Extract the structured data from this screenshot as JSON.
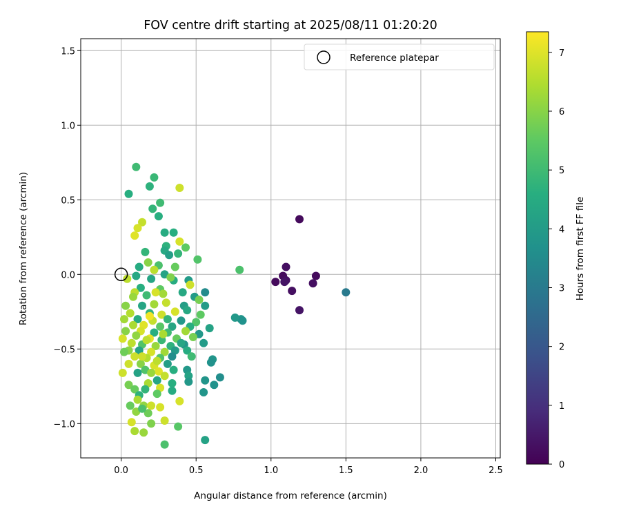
{
  "chart_data": {
    "type": "scatter",
    "title": "FOV centre drift starting at 2025/08/11 01:20:20",
    "xlabel": "Angular distance from reference (arcmin)",
    "ylabel": "Rotation from reference (arcmin)",
    "xlim": [
      -0.27,
      2.53
    ],
    "ylim": [
      -1.23,
      1.58
    ],
    "xticks": [
      0.0,
      0.5,
      1.0,
      1.5,
      2.0,
      2.5
    ],
    "xtick_labels": [
      "0.0",
      "0.5",
      "1.0",
      "1.5",
      "2.0",
      "2.5"
    ],
    "yticks": [
      -1.0,
      -0.5,
      0.0,
      0.5,
      1.0,
      1.5
    ],
    "ytick_labels": [
      "−1.0",
      "−0.5",
      "0.0",
      "0.5",
      "1.0",
      "1.5"
    ],
    "grid": true,
    "legend": {
      "placement": "upper right",
      "entries": [
        "Reference platepar"
      ]
    },
    "reference_point": {
      "x": 0.0,
      "y": 0.0,
      "marker": "open circle"
    },
    "colorbar": {
      "label": "Hours from first FF file",
      "range": [
        0,
        7.35
      ],
      "ticks": [
        0,
        1,
        2,
        3,
        4,
        5,
        6,
        7
      ],
      "tick_labels": [
        "0",
        "1",
        "2",
        "3",
        "4",
        "5",
        "6",
        "7"
      ],
      "colormap": "viridis"
    },
    "points": [
      [
        1.19,
        0.37,
        0.2
      ],
      [
        1.1,
        0.05,
        0.3
      ],
      [
        1.08,
        -0.01,
        0.2
      ],
      [
        1.03,
        -0.05,
        0.2
      ],
      [
        1.1,
        -0.04,
        0.3
      ],
      [
        1.09,
        -0.05,
        0.4
      ],
      [
        1.14,
        -0.11,
        0.3
      ],
      [
        1.19,
        -0.24,
        0.4
      ],
      [
        1.28,
        -0.06,
        0.3
      ],
      [
        1.3,
        -0.01,
        0.2
      ],
      [
        1.5,
        -0.12,
        3.0
      ],
      [
        0.79,
        0.03,
        5.2
      ],
      [
        0.8,
        -0.3,
        3.8
      ],
      [
        0.76,
        -0.29,
        3.9
      ],
      [
        0.81,
        -0.31,
        3.7
      ],
      [
        0.1,
        0.72,
        5.0
      ],
      [
        0.22,
        0.65,
        4.9
      ],
      [
        0.05,
        0.54,
        4.6
      ],
      [
        0.19,
        0.59,
        4.7
      ],
      [
        0.39,
        0.58,
        6.8
      ],
      [
        0.26,
        0.48,
        5.0
      ],
      [
        0.21,
        0.44,
        4.8
      ],
      [
        0.25,
        0.39,
        4.6
      ],
      [
        0.14,
        0.35,
        6.7
      ],
      [
        0.11,
        0.31,
        6.9
      ],
      [
        0.09,
        0.26,
        7.0
      ],
      [
        0.29,
        0.28,
        4.5
      ],
      [
        0.35,
        0.28,
        4.6
      ],
      [
        0.39,
        0.22,
        6.9
      ],
      [
        0.3,
        0.19,
        4.7
      ],
      [
        0.43,
        0.18,
        5.5
      ],
      [
        0.29,
        0.16,
        4.4
      ],
      [
        0.16,
        0.15,
        4.8
      ],
      [
        0.32,
        0.13,
        4.1
      ],
      [
        0.38,
        0.14,
        4.8
      ],
      [
        0.51,
        0.1,
        5.3
      ],
      [
        0.12,
        0.05,
        4.5
      ],
      [
        0.18,
        0.08,
        6.0
      ],
      [
        0.25,
        0.06,
        5.2
      ],
      [
        0.36,
        0.05,
        5.6
      ],
      [
        0.22,
        0.03,
        6.6
      ],
      [
        0.29,
        0.0,
        4.2
      ],
      [
        0.1,
        -0.01,
        4.4
      ],
      [
        0.04,
        -0.03,
        6.6
      ],
      [
        0.2,
        -0.03,
        4.3
      ],
      [
        0.35,
        -0.04,
        4.5
      ],
      [
        0.45,
        -0.04,
        4.0
      ],
      [
        0.46,
        -0.07,
        6.8
      ],
      [
        0.13,
        -0.09,
        4.6
      ],
      [
        0.26,
        -0.1,
        5.5
      ],
      [
        0.41,
        -0.12,
        4.4
      ],
      [
        0.56,
        -0.12,
        3.5
      ],
      [
        0.09,
        -0.12,
        6.6
      ],
      [
        0.17,
        -0.14,
        5.0
      ],
      [
        0.28,
        -0.13,
        6.3
      ],
      [
        0.49,
        -0.15,
        4.0
      ],
      [
        0.52,
        -0.17,
        5.8
      ],
      [
        0.03,
        -0.21,
        6.0
      ],
      [
        0.14,
        -0.21,
        4.3
      ],
      [
        0.22,
        -0.2,
        6.3
      ],
      [
        0.3,
        -0.19,
        6.7
      ],
      [
        0.42,
        -0.21,
        4.1
      ],
      [
        0.56,
        -0.21,
        4.0
      ],
      [
        0.06,
        -0.26,
        6.5
      ],
      [
        0.19,
        -0.26,
        4.8
      ],
      [
        0.27,
        -0.27,
        6.8
      ],
      [
        0.36,
        -0.25,
        6.9
      ],
      [
        0.44,
        -0.24,
        4.4
      ],
      [
        0.53,
        -0.27,
        5.5
      ],
      [
        0.02,
        -0.3,
        6.3
      ],
      [
        0.11,
        -0.3,
        4.5
      ],
      [
        0.21,
        -0.31,
        6.7
      ],
      [
        0.31,
        -0.3,
        4.8
      ],
      [
        0.4,
        -0.31,
        3.9
      ],
      [
        0.5,
        -0.32,
        5.3
      ],
      [
        0.08,
        -0.34,
        6.4
      ],
      [
        0.15,
        -0.34,
        7.0
      ],
      [
        0.26,
        -0.35,
        5.4
      ],
      [
        0.34,
        -0.35,
        4.3
      ],
      [
        0.46,
        -0.35,
        4.6
      ],
      [
        0.59,
        -0.36,
        4.2
      ],
      [
        0.03,
        -0.38,
        6.0
      ],
      [
        0.13,
        -0.38,
        6.9
      ],
      [
        0.22,
        -0.39,
        4.6
      ],
      [
        0.31,
        -0.39,
        5.0
      ],
      [
        0.43,
        -0.38,
        6.3
      ],
      [
        0.52,
        -0.4,
        3.9
      ],
      [
        0.01,
        -0.43,
        6.9
      ],
      [
        0.1,
        -0.41,
        6.1
      ],
      [
        0.19,
        -0.43,
        7.1
      ],
      [
        0.27,
        -0.44,
        4.9
      ],
      [
        0.37,
        -0.43,
        5.6
      ],
      [
        0.48,
        -0.42,
        5.8
      ],
      [
        0.55,
        -0.46,
        4.0
      ],
      [
        0.07,
        -0.46,
        6.6
      ],
      [
        0.14,
        -0.47,
        5.3
      ],
      [
        0.23,
        -0.48,
        6.2
      ],
      [
        0.33,
        -0.48,
        4.7
      ],
      [
        0.42,
        -0.47,
        3.8
      ],
      [
        0.05,
        -0.51,
        6.0
      ],
      [
        0.12,
        -0.51,
        4.2
      ],
      [
        0.2,
        -0.52,
        6.9
      ],
      [
        0.29,
        -0.52,
        6.3
      ],
      [
        0.36,
        -0.51,
        4.0
      ],
      [
        0.44,
        -0.51,
        4.5
      ],
      [
        0.02,
        -0.52,
        5.7
      ],
      [
        0.09,
        -0.55,
        6.8
      ],
      [
        0.17,
        -0.56,
        6.5
      ],
      [
        0.26,
        -0.56,
        5.3
      ],
      [
        0.34,
        -0.55,
        3.6
      ],
      [
        0.47,
        -0.55,
        5.0
      ],
      [
        0.61,
        -0.57,
        3.8
      ],
      [
        0.05,
        -0.6,
        6.8
      ],
      [
        0.13,
        -0.6,
        6.0
      ],
      [
        0.22,
        -0.61,
        6.9
      ],
      [
        0.31,
        -0.6,
        4.1
      ],
      [
        0.44,
        -0.64,
        3.9
      ],
      [
        0.6,
        -0.59,
        3.7
      ],
      [
        0.16,
        -0.64,
        5.3
      ],
      [
        0.25,
        -0.65,
        7.0
      ],
      [
        0.35,
        -0.64,
        4.6
      ],
      [
        0.01,
        -0.66,
        6.8
      ],
      [
        0.11,
        -0.66,
        4.2
      ],
      [
        0.2,
        -0.66,
        6.2
      ],
      [
        0.29,
        -0.68,
        6.7
      ],
      [
        0.45,
        -0.68,
        4.2
      ],
      [
        0.66,
        -0.69,
        3.6
      ],
      [
        0.24,
        -0.71,
        4.3
      ],
      [
        0.34,
        -0.73,
        4.6
      ],
      [
        0.56,
        -0.71,
        3.8
      ],
      [
        0.18,
        -0.73,
        6.4
      ],
      [
        0.05,
        -0.74,
        5.8
      ],
      [
        0.45,
        -0.72,
        3.9
      ],
      [
        0.62,
        -0.74,
        3.7
      ],
      [
        0.26,
        -0.76,
        6.9
      ],
      [
        0.16,
        -0.77,
        4.8
      ],
      [
        0.09,
        -0.77,
        5.6
      ],
      [
        0.34,
        -0.78,
        4.5
      ],
      [
        0.55,
        -0.79,
        3.8
      ],
      [
        0.24,
        -0.8,
        5.5
      ],
      [
        0.12,
        -0.81,
        4.7
      ],
      [
        0.39,
        -0.85,
        6.9
      ],
      [
        0.11,
        -0.84,
        6.4
      ],
      [
        0.06,
        -0.88,
        5.6
      ],
      [
        0.15,
        -0.88,
        6.1
      ],
      [
        0.2,
        -0.88,
        6.8
      ],
      [
        0.26,
        -0.89,
        6.9
      ],
      [
        0.18,
        -0.93,
        5.7
      ],
      [
        0.1,
        -0.92,
        6.1
      ],
      [
        0.14,
        -0.9,
        5.2
      ],
      [
        0.29,
        -0.98,
        6.8
      ],
      [
        0.07,
        -0.99,
        6.9
      ],
      [
        0.2,
        -1.0,
        5.9
      ],
      [
        0.38,
        -1.02,
        5.4
      ],
      [
        0.09,
        -1.05,
        6.4
      ],
      [
        0.15,
        -1.06,
        6.2
      ],
      [
        0.29,
        -1.14,
        5.2
      ],
      [
        0.56,
        -1.11,
        4.2
      ],
      [
        0.24,
        -0.58,
        6.6
      ],
      [
        0.19,
        -0.28,
        7.2
      ],
      [
        0.14,
        -0.55,
        6.8
      ],
      [
        0.28,
        -0.4,
        6.4
      ],
      [
        0.08,
        -0.15,
        6.2
      ],
      [
        0.33,
        -0.02,
        5.9
      ],
      [
        0.4,
        -0.46,
        4.3
      ],
      [
        0.23,
        -0.12,
        6.9
      ],
      [
        0.17,
        -0.44,
        6.6
      ]
    ]
  }
}
